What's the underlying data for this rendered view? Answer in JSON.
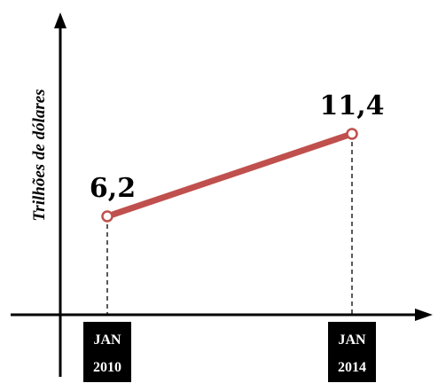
{
  "chart_data": {
    "type": "line",
    "title": "",
    "xlabel": "",
    "ylabel": "Trilhões de dólares",
    "categories": [
      {
        "top": "JAN",
        "bottom": "2010"
      },
      {
        "top": "JAN",
        "bottom": "2014"
      }
    ],
    "values": [
      6.2,
      11.4
    ],
    "data_labels": [
      "6,2",
      "11,4"
    ],
    "ylim": [
      0,
      14
    ],
    "grid": false,
    "series_color": "#c0504d"
  }
}
